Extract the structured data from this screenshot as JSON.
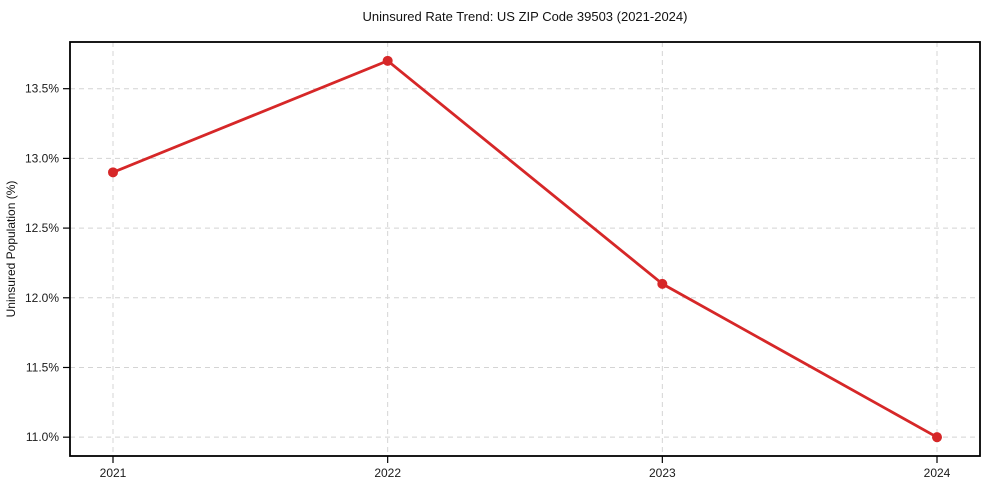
{
  "chart_data": {
    "type": "line",
    "title": "Uninsured Rate Trend: US ZIP Code 39503 (2021-2024)",
    "xlabel": "",
    "ylabel": "Uninsured Population (%)",
    "x": [
      "2021",
      "2022",
      "2023",
      "2024"
    ],
    "values": [
      12.9,
      13.7,
      12.1,
      11.0
    ],
    "unit": "%",
    "y_ticks": [
      11.0,
      11.5,
      12.0,
      12.5,
      13.0,
      13.5
    ],
    "y_tick_labels": [
      "11.0%",
      "11.5%",
      "12.0%",
      "12.5%",
      "13.0%",
      "13.5%"
    ],
    "ylim": [
      10.865,
      13.835
    ],
    "grid": "both, dashed",
    "legend_position": "none",
    "marker": "circle",
    "line_color": "#d62728",
    "marker_color": "#d62728",
    "grid_color": "#d4d4d4",
    "axis_color": "#000000",
    "text_color": "#1a1a1a",
    "background_color": "#ffffff"
  }
}
